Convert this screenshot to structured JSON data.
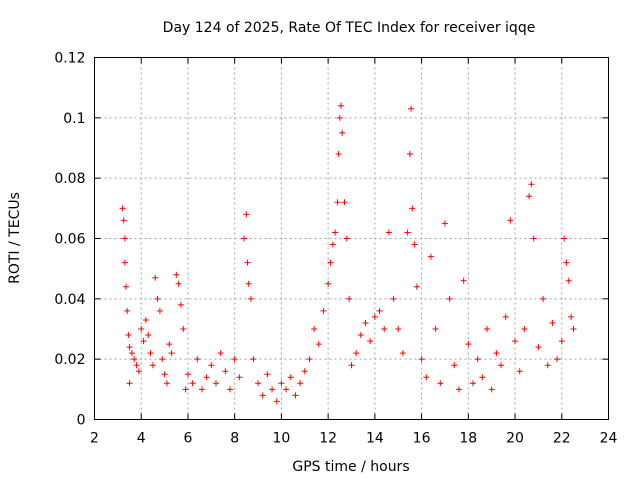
{
  "chart_data": {
    "type": "scatter",
    "title": "Day 124 of 2025, Rate Of TEC Index for receiver iqqe",
    "xlabel": "GPS time / hours",
    "ylabel": "ROTI / TECUs",
    "xlim": [
      2,
      24
    ],
    "ylim": [
      0,
      0.12
    ],
    "xticks": [
      2,
      4,
      6,
      8,
      10,
      12,
      14,
      16,
      18,
      20,
      22,
      24
    ],
    "yticks": [
      0,
      0.02,
      0.04,
      0.06,
      0.08,
      0.1,
      0.12
    ],
    "ytick_labels": [
      "0",
      "0.02",
      "0.04",
      "0.06",
      "0.08",
      "0.1",
      "0.12"
    ],
    "grid": true,
    "marker": "+",
    "color": "#ff0000",
    "series": [
      {
        "name": "ROTI",
        "points": [
          [
            3.2,
            0.07
          ],
          [
            3.25,
            0.066
          ],
          [
            3.3,
            0.06
          ],
          [
            3.3,
            0.052
          ],
          [
            3.35,
            0.044
          ],
          [
            3.4,
            0.036
          ],
          [
            3.45,
            0.028
          ],
          [
            3.5,
            0.024
          ],
          [
            3.5,
            0.012
          ],
          [
            3.6,
            0.022
          ],
          [
            3.7,
            0.02
          ],
          [
            3.8,
            0.018
          ],
          [
            3.9,
            0.016
          ],
          [
            4.0,
            0.03
          ],
          [
            4.1,
            0.026
          ],
          [
            4.2,
            0.033
          ],
          [
            4.3,
            0.028
          ],
          [
            4.4,
            0.022
          ],
          [
            4.5,
            0.018
          ],
          [
            4.6,
            0.047
          ],
          [
            4.7,
            0.04
          ],
          [
            4.8,
            0.036
          ],
          [
            4.9,
            0.02
          ],
          [
            5.0,
            0.015
          ],
          [
            5.1,
            0.012
          ],
          [
            5.2,
            0.025
          ],
          [
            5.3,
            0.022
          ],
          [
            5.5,
            0.048
          ],
          [
            5.6,
            0.045
          ],
          [
            5.7,
            0.038
          ],
          [
            5.8,
            0.03
          ],
          [
            5.9,
            0.01
          ],
          [
            6.0,
            0.015
          ],
          [
            6.2,
            0.012
          ],
          [
            6.4,
            0.02
          ],
          [
            6.6,
            0.01
          ],
          [
            6.8,
            0.014
          ],
          [
            7.0,
            0.018
          ],
          [
            7.2,
            0.012
          ],
          [
            7.4,
            0.022
          ],
          [
            7.6,
            0.016
          ],
          [
            7.8,
            0.01
          ],
          [
            8.0,
            0.02
          ],
          [
            8.2,
            0.014
          ],
          [
            8.4,
            0.06
          ],
          [
            8.5,
            0.068
          ],
          [
            8.55,
            0.052
          ],
          [
            8.6,
            0.045
          ],
          [
            8.7,
            0.04
          ],
          [
            8.8,
            0.02
          ],
          [
            9.0,
            0.012
          ],
          [
            9.2,
            0.008
          ],
          [
            9.4,
            0.015
          ],
          [
            9.6,
            0.01
          ],
          [
            9.8,
            0.006
          ],
          [
            10.0,
            0.012
          ],
          [
            10.2,
            0.01
          ],
          [
            10.4,
            0.014
          ],
          [
            10.6,
            0.008
          ],
          [
            10.8,
            0.012
          ],
          [
            11.0,
            0.016
          ],
          [
            11.2,
            0.02
          ],
          [
            11.4,
            0.03
          ],
          [
            11.6,
            0.025
          ],
          [
            11.8,
            0.036
          ],
          [
            12.0,
            0.045
          ],
          [
            12.1,
            0.052
          ],
          [
            12.2,
            0.058
          ],
          [
            12.3,
            0.062
          ],
          [
            12.4,
            0.072
          ],
          [
            12.45,
            0.088
          ],
          [
            12.5,
            0.1
          ],
          [
            12.55,
            0.104
          ],
          [
            12.6,
            0.095
          ],
          [
            12.7,
            0.072
          ],
          [
            12.8,
            0.06
          ],
          [
            12.9,
            0.04
          ],
          [
            13.0,
            0.018
          ],
          [
            13.2,
            0.022
          ],
          [
            13.4,
            0.028
          ],
          [
            13.6,
            0.032
          ],
          [
            13.8,
            0.026
          ],
          [
            14.0,
            0.034
          ],
          [
            14.2,
            0.036
          ],
          [
            14.4,
            0.03
          ],
          [
            14.6,
            0.062
          ],
          [
            14.8,
            0.04
          ],
          [
            15.0,
            0.03
          ],
          [
            15.2,
            0.022
          ],
          [
            15.4,
            0.062
          ],
          [
            15.5,
            0.088
          ],
          [
            15.55,
            0.103
          ],
          [
            15.6,
            0.07
          ],
          [
            15.7,
            0.058
          ],
          [
            15.8,
            0.044
          ],
          [
            16.0,
            0.02
          ],
          [
            16.2,
            0.014
          ],
          [
            16.4,
            0.054
          ],
          [
            16.6,
            0.03
          ],
          [
            16.8,
            0.012
          ],
          [
            17.0,
            0.065
          ],
          [
            17.2,
            0.04
          ],
          [
            17.4,
            0.018
          ],
          [
            17.6,
            0.01
          ],
          [
            17.8,
            0.046
          ],
          [
            18.0,
            0.025
          ],
          [
            18.2,
            0.012
          ],
          [
            18.4,
            0.02
          ],
          [
            18.6,
            0.014
          ],
          [
            18.8,
            0.03
          ],
          [
            19.0,
            0.01
          ],
          [
            19.2,
            0.022
          ],
          [
            19.4,
            0.018
          ],
          [
            19.6,
            0.034
          ],
          [
            19.8,
            0.066
          ],
          [
            20.0,
            0.026
          ],
          [
            20.2,
            0.016
          ],
          [
            20.4,
            0.03
          ],
          [
            20.6,
            0.074
          ],
          [
            20.7,
            0.078
          ],
          [
            20.8,
            0.06
          ],
          [
            21.0,
            0.024
          ],
          [
            21.2,
            0.04
          ],
          [
            21.4,
            0.018
          ],
          [
            21.6,
            0.032
          ],
          [
            21.8,
            0.02
          ],
          [
            22.0,
            0.026
          ],
          [
            22.1,
            0.06
          ],
          [
            22.2,
            0.052
          ],
          [
            22.3,
            0.046
          ],
          [
            22.4,
            0.034
          ],
          [
            22.5,
            0.03
          ]
        ]
      }
    ]
  }
}
